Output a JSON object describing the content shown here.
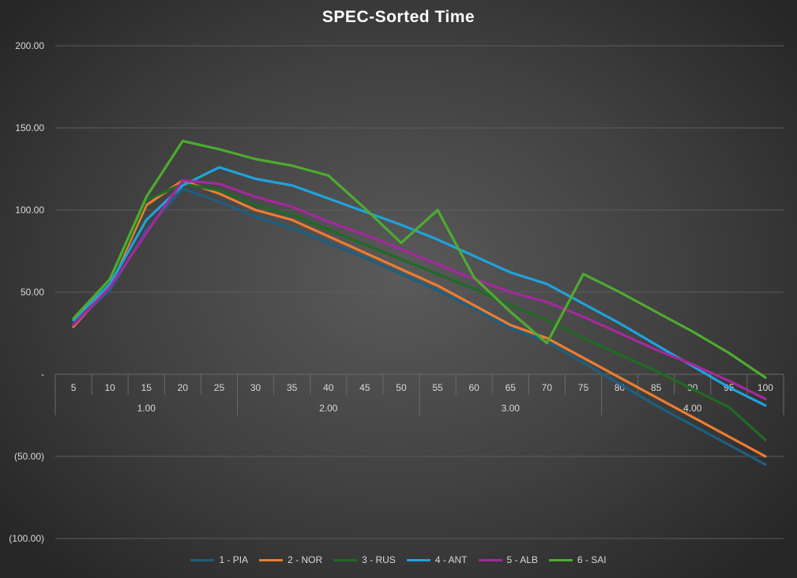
{
  "chart_data": {
    "type": "line",
    "title": "SPEC-Sorted Time",
    "xlabel": "",
    "ylabel": "",
    "ylim": [
      -100,
      200
    ],
    "yticks": [
      {
        "value": 200,
        "label": "200.00"
      },
      {
        "value": 150,
        "label": "150.00"
      },
      {
        "value": 100,
        "label": "100.00"
      },
      {
        "value": 50,
        "label": "50.00"
      },
      {
        "value": 0,
        "label": "-"
      },
      {
        "value": -50,
        "label": "(50.00)"
      },
      {
        "value": -100,
        "label": "(100.00)"
      }
    ],
    "categories": [
      "5",
      "10",
      "15",
      "20",
      "25",
      "30",
      "35",
      "40",
      "45",
      "50",
      "55",
      "60",
      "65",
      "70",
      "75",
      "80",
      "85",
      "90",
      "95",
      "100"
    ],
    "groups": [
      {
        "label": "1.00",
        "span": 5
      },
      {
        "label": "2.00",
        "span": 5
      },
      {
        "label": "3.00",
        "span": 5
      },
      {
        "label": "4.00",
        "span": 5
      }
    ],
    "grid": true,
    "legend_position": "bottom",
    "series": [
      {
        "name": "1 - PIA",
        "color": "#1d5f80",
        "values": [
          31,
          51,
          88,
          113,
          105,
          96,
          89,
          80,
          71,
          61,
          51,
          40,
          28,
          20,
          7,
          -6,
          -19,
          -31,
          -43,
          -55
        ]
      },
      {
        "name": "2 - NOR",
        "color": "#ed7d31",
        "values": [
          29,
          54,
          103,
          118,
          110,
          100,
          94,
          84,
          74,
          64,
          54,
          42,
          30,
          22,
          10,
          -2,
          -14,
          -26,
          -38,
          -50
        ]
      },
      {
        "name": "3 - RUS",
        "color": "#1e6b24",
        "values": [
          33,
          56,
          106,
          116,
          112,
          103,
          97,
          88,
          79,
          70,
          61,
          52,
          42,
          33,
          22,
          12,
          2,
          -9,
          -20,
          -40
        ]
      },
      {
        "name": "4 - ANT",
        "color": "#1fa2dc",
        "values": [
          33,
          55,
          94,
          115,
          126,
          119,
          115,
          107,
          99,
          91,
          82,
          72,
          62,
          55,
          43,
          31,
          18,
          5,
          -8,
          -19
        ]
      },
      {
        "name": "5 - ALB",
        "color": "#a4299d",
        "values": [
          30,
          53,
          86,
          118,
          116,
          108,
          102,
          93,
          85,
          76,
          67,
          58,
          50,
          44,
          35,
          25,
          15,
          6,
          -4,
          -15
        ]
      },
      {
        "name": "6 - SAI",
        "color": "#4eab2f",
        "values": [
          34,
          58,
          108,
          142,
          137,
          131,
          127,
          121,
          101,
          80,
          100,
          59,
          38,
          19,
          61,
          50,
          38,
          26,
          13,
          -2
        ]
      }
    ]
  }
}
